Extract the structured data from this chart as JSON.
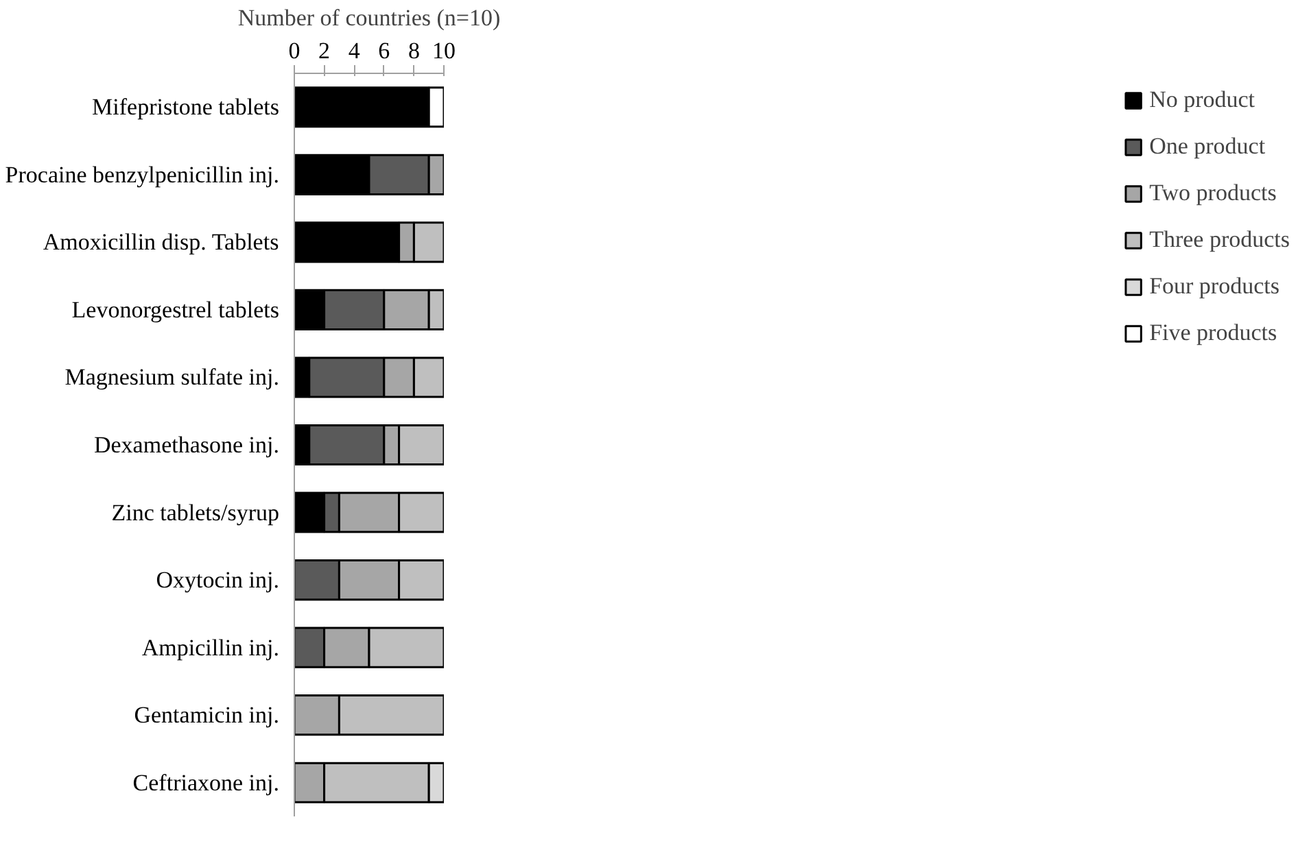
{
  "chart_data": {
    "type": "bar",
    "orientation": "horizontal",
    "stacked": true,
    "xlabel": "Number of countries (n=10)",
    "categories": [
      "Mifepristone tablets",
      "Procaine benzylpenicillin inj.",
      "Amoxicillin disp. Tablets",
      "Levonorgestrel tablets",
      "Magnesium sulfate inj.",
      "Dexamethasone inj.",
      "Zinc tablets/syrup",
      "Oxytocin inj.",
      "Ampicillin inj.",
      "Gentamicin inj.",
      "Ceftriaxone inj."
    ],
    "series": [
      {
        "name": "No product",
        "color": "#000000",
        "values": [
          9,
          5,
          7,
          2,
          1,
          1,
          2,
          null,
          null,
          null,
          null
        ]
      },
      {
        "name": "One product",
        "color": "#5a5a5a",
        "values": [
          null,
          4,
          null,
          4,
          5,
          5,
          1,
          3,
          2,
          null,
          null
        ]
      },
      {
        "name": "Two products",
        "color": "#a6a6a6",
        "values": [
          null,
          1,
          1,
          3,
          2,
          1,
          4,
          4,
          3,
          3,
          2
        ]
      },
      {
        "name": "Three products",
        "color": "#bfbfbf",
        "values": [
          null,
          null,
          2,
          1,
          2,
          3,
          3,
          3,
          5,
          7,
          7
        ]
      },
      {
        "name": "Four products",
        "color": "#d9d9d9",
        "values": [
          null,
          null,
          null,
          null,
          null,
          null,
          null,
          null,
          null,
          null,
          1
        ]
      },
      {
        "name": "Five products",
        "color": "#ffffff",
        "values": [
          1,
          null,
          null,
          null,
          null,
          null,
          null,
          null,
          null,
          null,
          null
        ]
      }
    ],
    "xlim": [
      0,
      10
    ],
    "xticks": [
      0,
      2,
      4,
      6,
      8,
      10
    ],
    "grid": false,
    "legend": "right"
  }
}
